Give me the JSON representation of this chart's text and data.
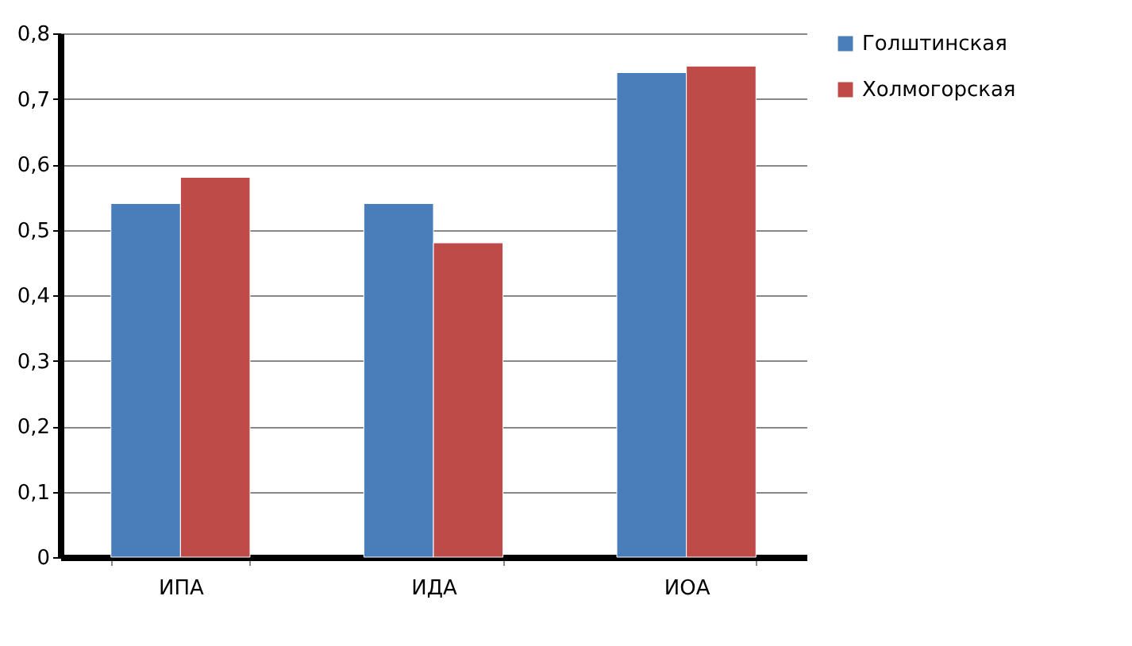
{
  "chart_data": {
    "type": "bar",
    "categories": [
      "ИПА",
      "ИДА",
      "ИОА"
    ],
    "series": [
      {
        "name": "Голштинская",
        "color": "#4a7ebb",
        "values": [
          0.54,
          0.54,
          0.74
        ]
      },
      {
        "name": "Холмогорская",
        "color": "#be4b48",
        "values": [
          0.58,
          0.48,
          0.75
        ]
      }
    ],
    "ylim": [
      0,
      0.8
    ],
    "yticks": [
      0,
      {
        "value": 0.1,
        "label": "0,1"
      },
      {
        "value": 0.2,
        "label": "0,2"
      },
      {
        "value": 0.3,
        "label": "0,3"
      },
      {
        "value": 0.4,
        "label": "0,4"
      },
      {
        "value": 0.5,
        "label": "0,5"
      },
      {
        "value": 0.6,
        "label": "0,6"
      },
      {
        "value": 0.7,
        "label": "0,7"
      },
      {
        "value": 0.8,
        "label": "0,8"
      }
    ],
    "grid": "y",
    "legend": "right"
  }
}
